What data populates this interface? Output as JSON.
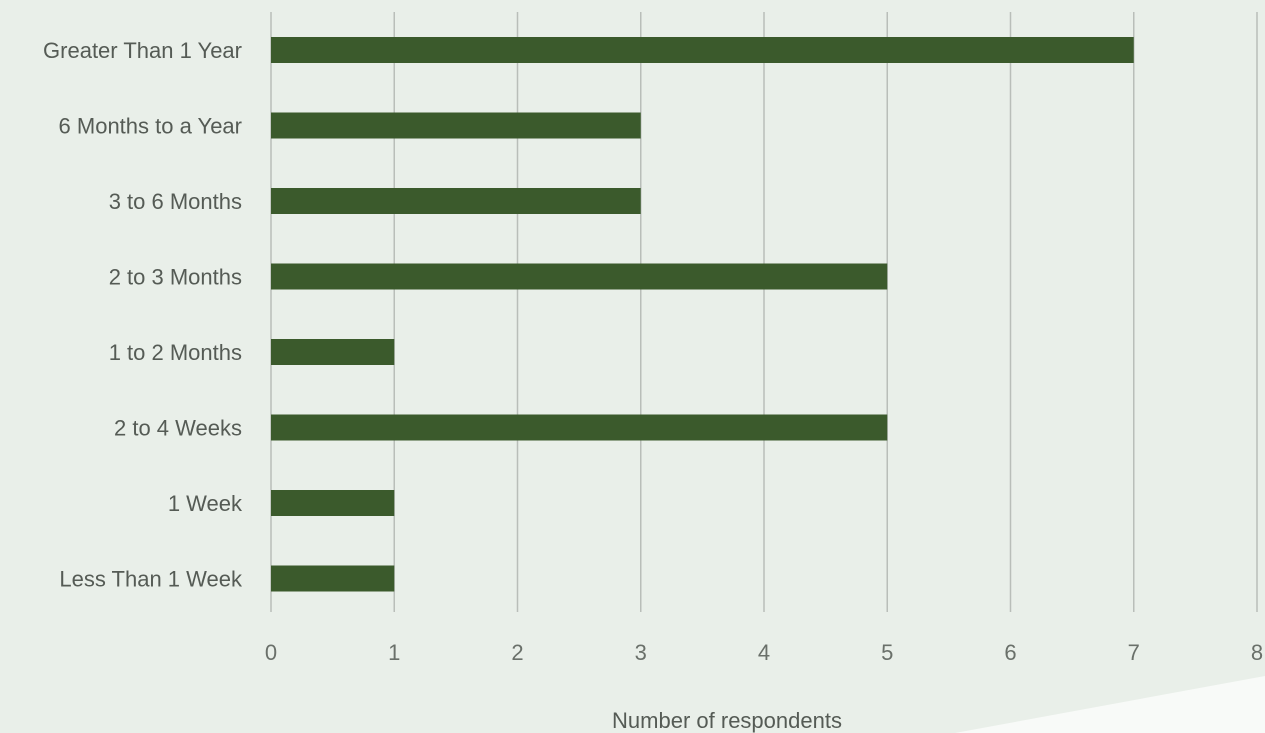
{
  "chart_data": {
    "type": "bar",
    "orientation": "horizontal",
    "categories": [
      "Greater Than 1 Year",
      "6 Months to a Year",
      "3 to 6 Months",
      "2 to 3 Months",
      "1 to 2 Months",
      "2 to 4 Weeks",
      "1 Week",
      "Less Than 1 Week"
    ],
    "values": [
      7,
      3,
      3,
      5,
      1,
      5,
      1,
      1
    ],
    "xlabel": "Number of respondents",
    "ylabel": "",
    "xlim": [
      0,
      8
    ],
    "xticks": [
      "0",
      "1",
      "2",
      "3",
      "4",
      "5",
      "6",
      "7",
      "8"
    ],
    "grid": "vertical",
    "legend": "none",
    "colors": {
      "bar": "#3b5a2c",
      "background": "#e9efe9",
      "grid": "#b9beb9",
      "accent_shape": "#f8faf8"
    }
  }
}
